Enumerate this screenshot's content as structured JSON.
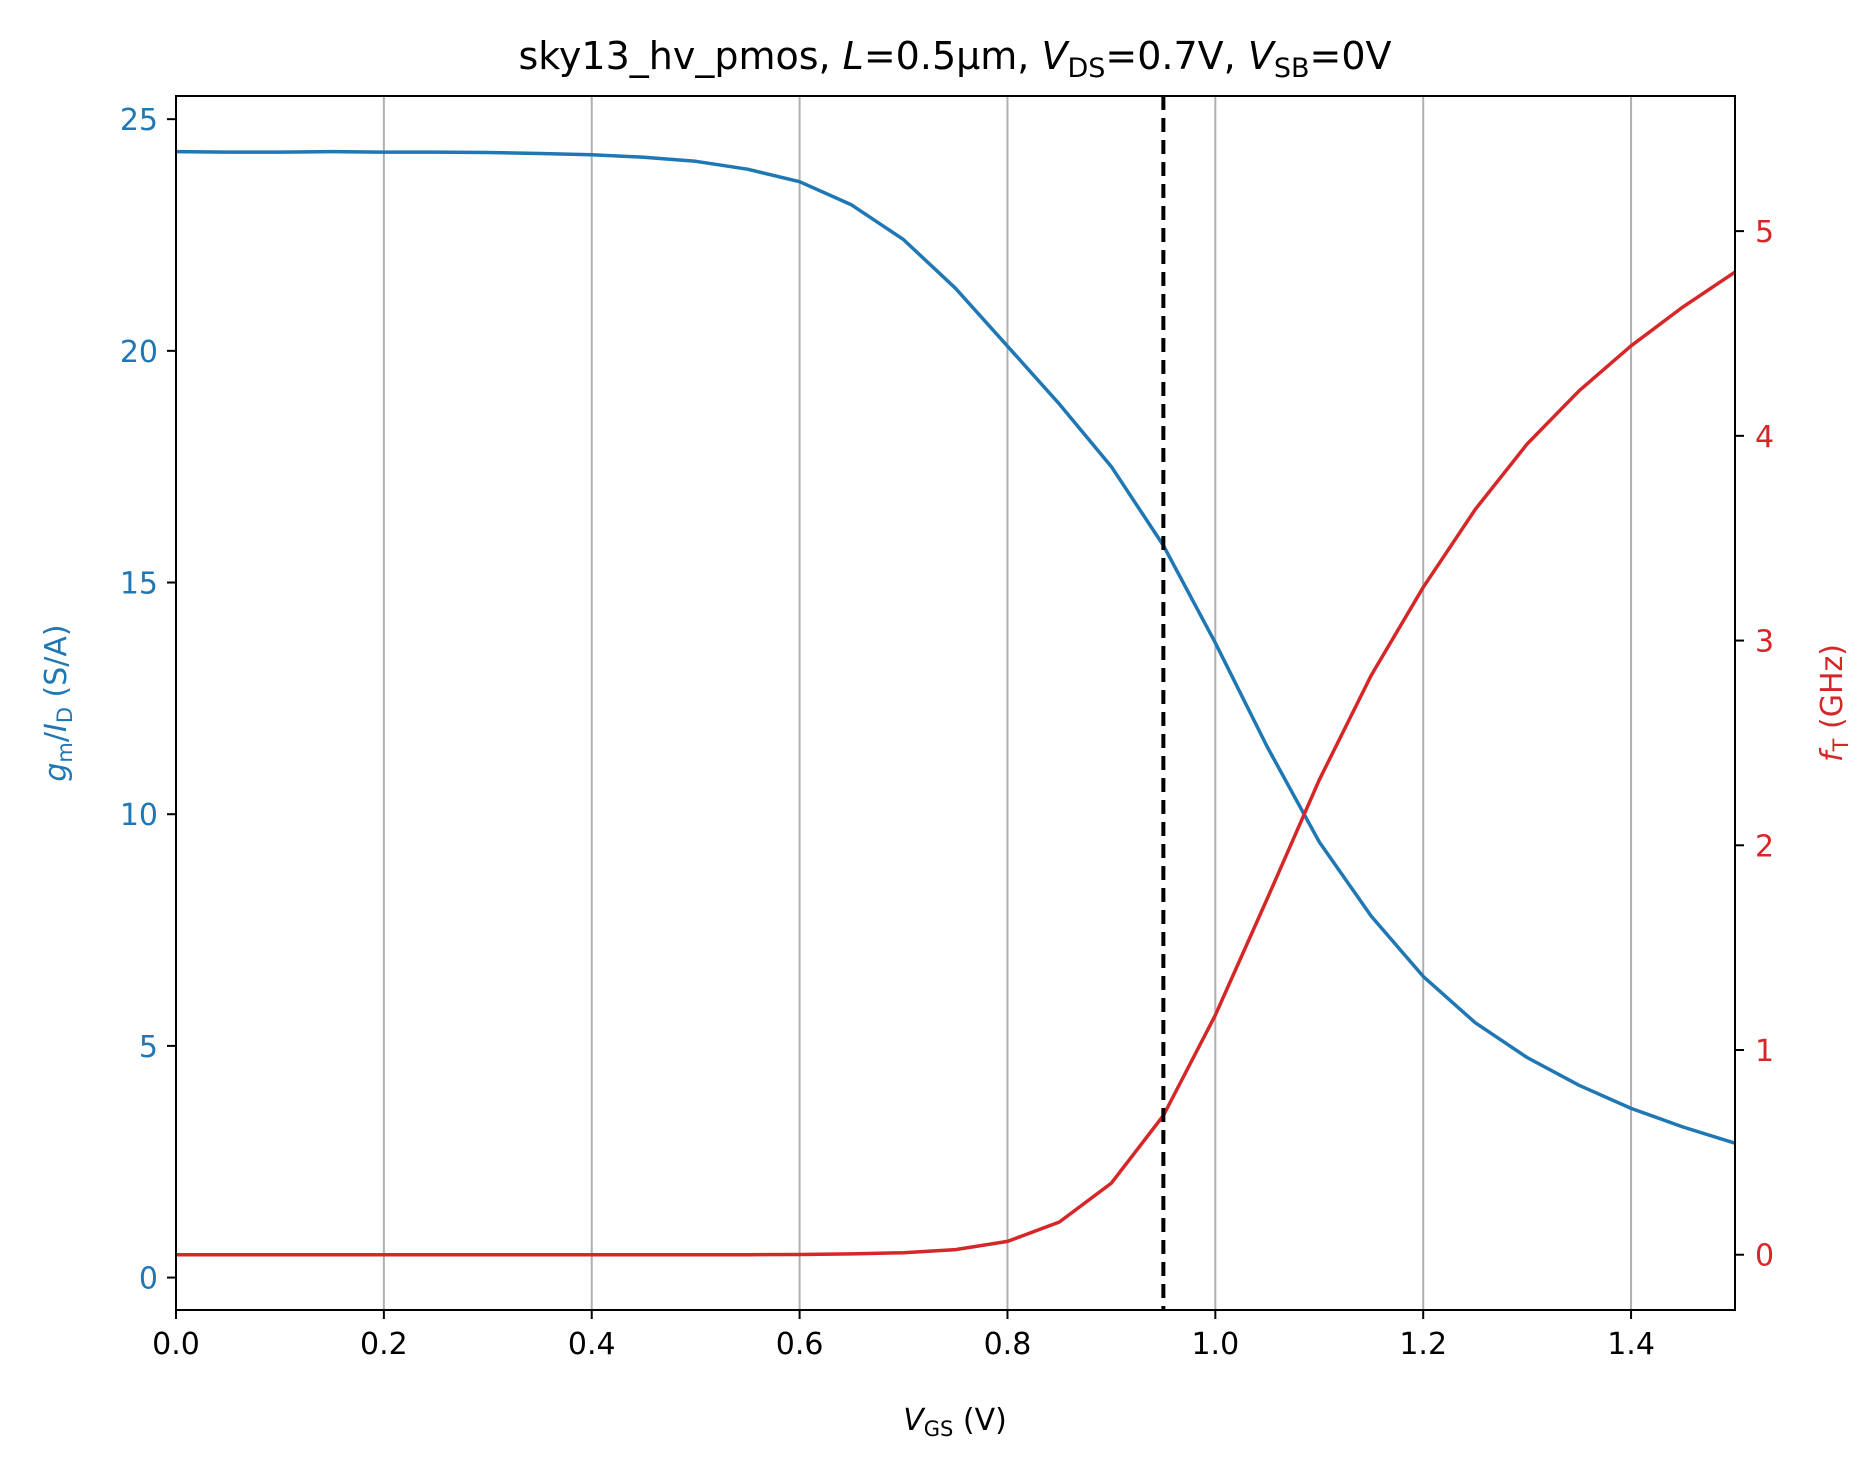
{
  "chart_data": {
    "type": "line",
    "title": {
      "prefix": "sky13_hv_pmos, ",
      "L_sym": "L",
      "L_val": "=0.5µm, ",
      "vds_sym": "V",
      "vds_sub": "DS",
      "vds_val": "=0.7V, ",
      "vsb_sym": "V",
      "vsb_sub": "SB",
      "vsb_val": "=0V"
    },
    "xlabel": {
      "sym": "V",
      "sub": "GS",
      "rest": " (V)"
    },
    "ylabel_left": {
      "sym1": "g",
      "sub1": "m",
      "slash": "/",
      "sym2": "I",
      "sub2": "D",
      "rest": " (S/A)"
    },
    "ylabel_right": {
      "sym": "f",
      "sub": "T",
      "rest": " (GHz)"
    },
    "xlim": [
      0.0,
      1.5
    ],
    "ylim_left": [
      -0.7,
      25.5
    ],
    "ylim_right": [
      -0.27,
      5.66
    ],
    "xticks": [
      "0.0",
      "0.2",
      "0.4",
      "0.6",
      "0.8",
      "1.0",
      "1.2",
      "1.4"
    ],
    "yticks_left": [
      "0",
      "5",
      "10",
      "15",
      "20",
      "25"
    ],
    "yticks_right": [
      "0",
      "1",
      "2",
      "3",
      "4",
      "5"
    ],
    "vline_x": 0.95,
    "grid": "x-only",
    "colors": {
      "left": "#1f77b4",
      "right": "#d62728",
      "vline": "#000000",
      "grid": "#b0b0b0"
    },
    "x": [
      0.0,
      0.05,
      0.1,
      0.15,
      0.2,
      0.25,
      0.3,
      0.35,
      0.4,
      0.45,
      0.5,
      0.55,
      0.6,
      0.65,
      0.7,
      0.75,
      0.8,
      0.85,
      0.9,
      0.95,
      1.0,
      1.05,
      1.1,
      1.15,
      1.2,
      1.25,
      1.3,
      1.35,
      1.4,
      1.45,
      1.5
    ],
    "series": [
      {
        "axis": "left",
        "values": [
          24.3,
          24.29,
          24.29,
          24.3,
          24.29,
          24.29,
          24.28,
          24.26,
          24.23,
          24.18,
          24.09,
          23.92,
          23.65,
          23.15,
          22.4,
          21.35,
          20.1,
          18.85,
          17.5,
          15.8,
          13.7,
          11.45,
          9.4,
          7.8,
          6.5,
          5.5,
          4.75,
          4.15,
          3.65,
          3.25,
          2.9
        ]
      },
      {
        "axis": "right",
        "values": [
          0.0,
          0.0,
          0.0,
          0.0,
          0.0,
          0.0,
          0.0,
          0.0,
          0.0,
          0.0,
          0.0,
          0.0,
          0.001,
          0.004,
          0.01,
          0.025,
          0.065,
          0.16,
          0.35,
          0.68,
          1.17,
          1.74,
          2.32,
          2.83,
          3.26,
          3.64,
          3.96,
          4.22,
          4.44,
          4.63,
          4.8
        ]
      }
    ]
  }
}
